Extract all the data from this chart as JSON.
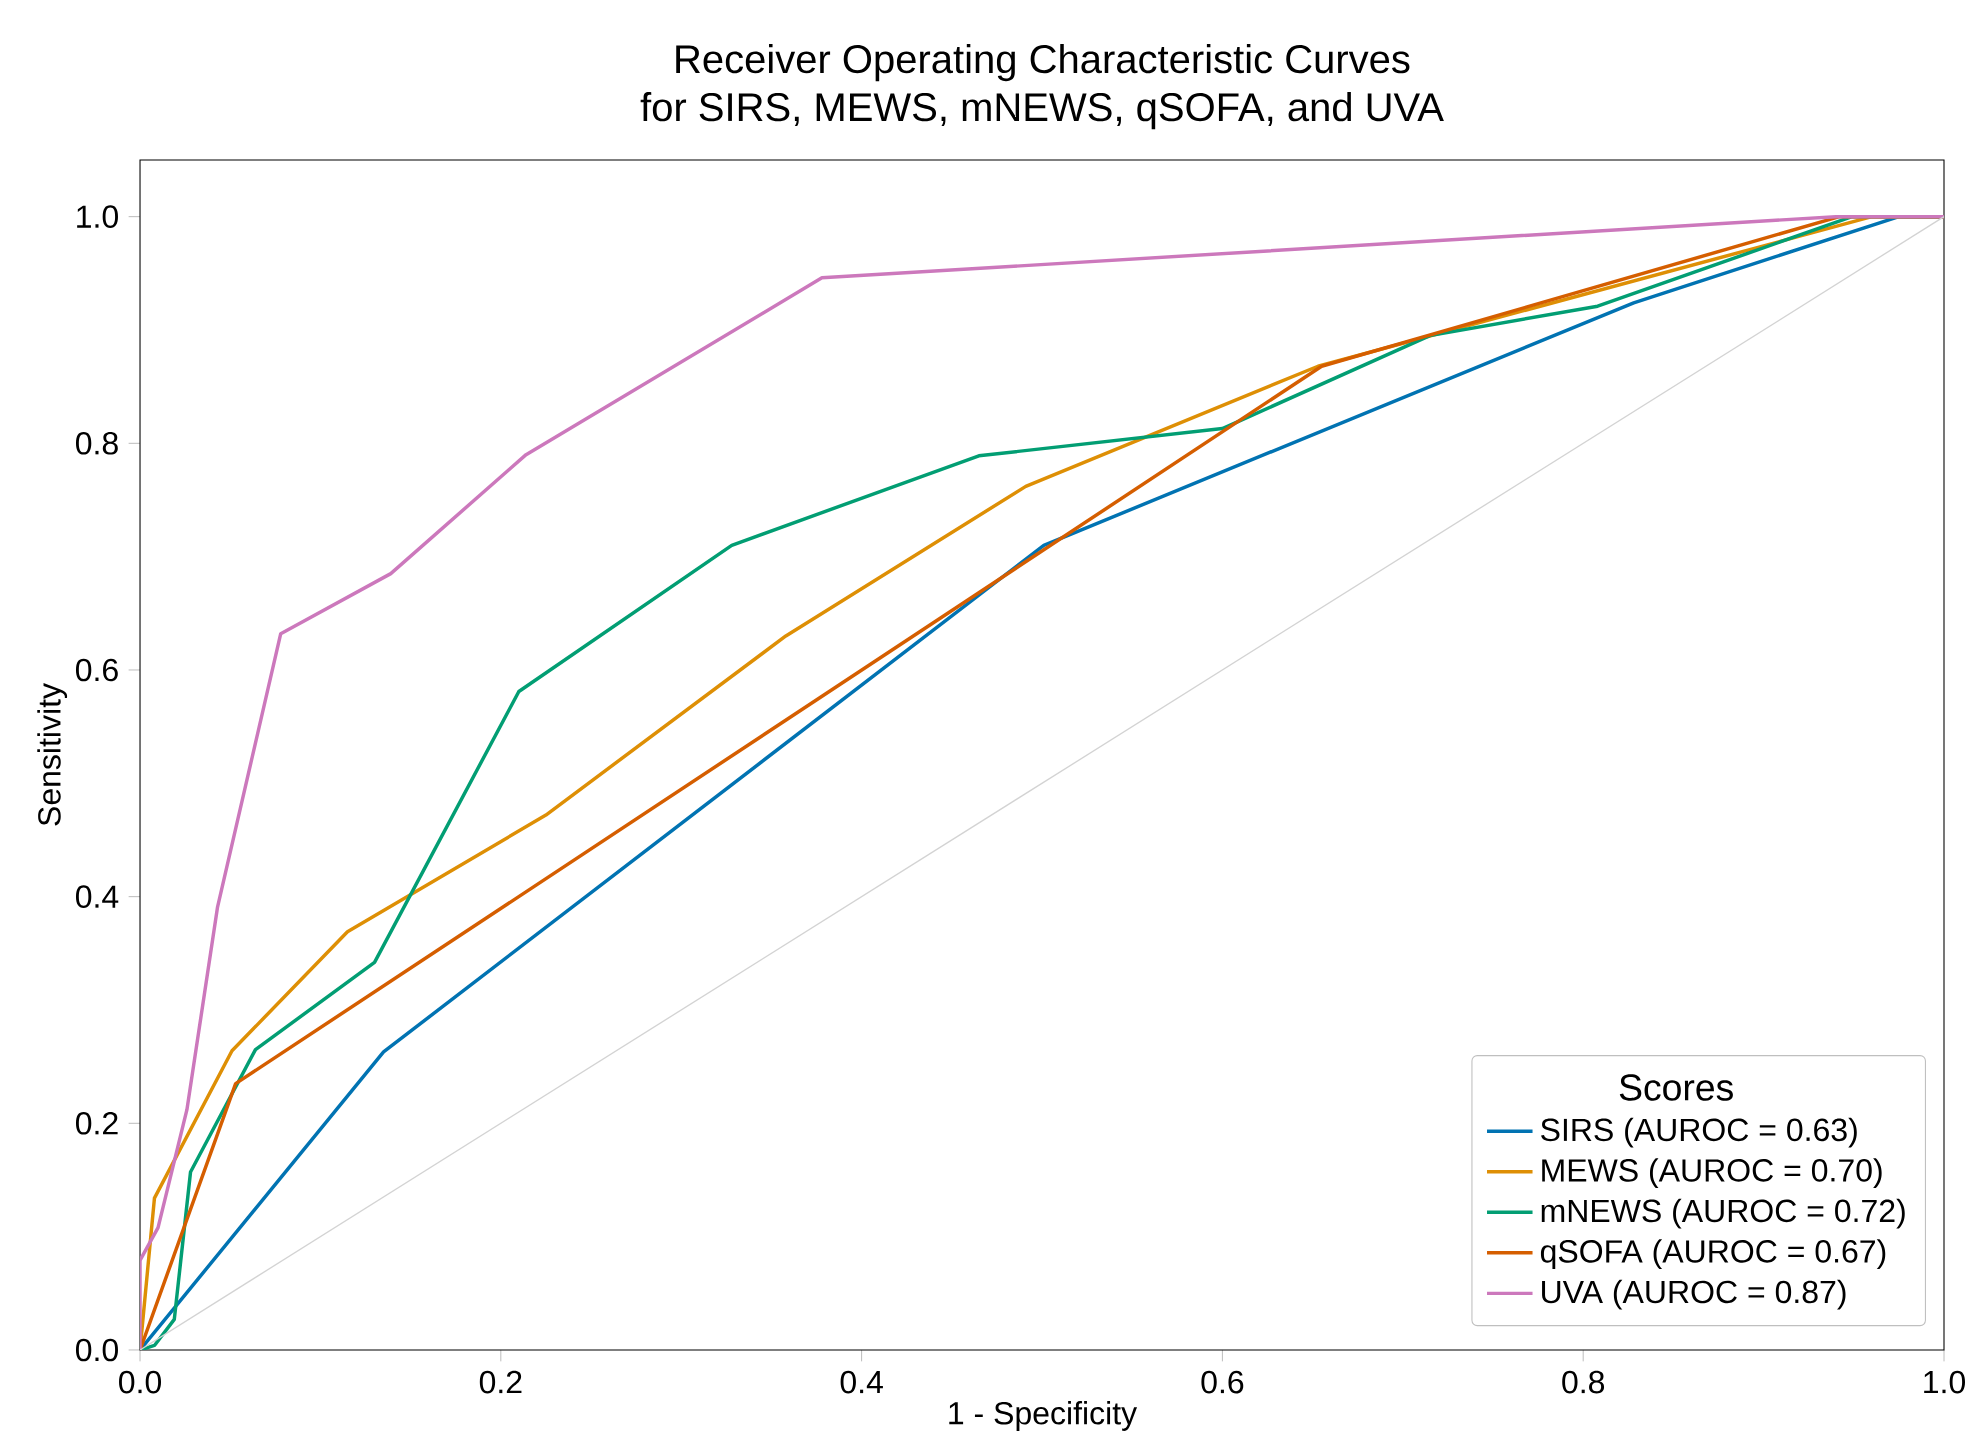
{
  "chart_data": {
    "type": "line",
    "title": "Receiver Operating Characteristic Curves",
    "subtitle": "for SIRS, MEWS, mNEWS, qSOFA, and UVA",
    "xlabel": "1 - Specificity",
    "ylabel": "Sensitivity",
    "legend_title": "Scores",
    "legend": "bottom right",
    "grid": false,
    "marker": "none",
    "line_style": "solid",
    "xlim": [
      0,
      1
    ],
    "ylim": [
      0,
      1.05
    ],
    "xticks": [
      {
        "value": 0,
        "label": "0.0"
      },
      0.2,
      0.4,
      0.6,
      0.8,
      {
        "value": 1,
        "label": "1.0"
      }
    ],
    "yticks": [
      {
        "value": 0,
        "label": "0.0"
      },
      0.2,
      0.4,
      0.6,
      0.8,
      {
        "value": 1,
        "label": "1.0"
      }
    ],
    "series": [
      {
        "name": "SIRS (AUROC = 0.63)",
        "color": "#0173b2",
        "x": [
          0,
          0.135,
          0.501,
          0.828,
          0.975,
          1
        ],
        "values": [
          0,
          0.263,
          0.71,
          0.924,
          1.0,
          1.0
        ]
      },
      {
        "name": "MEWS (AUROC = 0.70)",
        "color": "#de8f05",
        "x": [
          0,
          0.008,
          0.051,
          0.115,
          0.225,
          0.358,
          0.491,
          0.653,
          0.96,
          1
        ],
        "values": [
          0,
          0.134,
          0.264,
          0.369,
          0.472,
          0.63,
          0.762,
          0.868,
          1.0,
          1.0
        ]
      },
      {
        "name": "mNEWS (AUROC = 0.72)",
        "color": "#029e73",
        "x": [
          0,
          0.008,
          0.019,
          0.028,
          0.064,
          0.13,
          0.21,
          0.328,
          0.465,
          0.6,
          0.715,
          0.808,
          0.949,
          1
        ],
        "values": [
          0,
          0.004,
          0.027,
          0.157,
          0.265,
          0.342,
          0.581,
          0.71,
          0.789,
          0.813,
          0.895,
          0.921,
          1.0,
          1.0
        ]
      },
      {
        "name": "qSOFA (AUROC = 0.67)",
        "color": "#d55e00",
        "x": [
          0,
          0.053,
          0.655,
          0.942,
          1
        ],
        "values": [
          0,
          0.235,
          0.868,
          1.0,
          1.0
        ]
      },
      {
        "name": "UVA (AUROC = 0.87)",
        "color": "#cc78bc",
        "x": [
          0,
          0,
          0.01,
          0.026,
          0.043,
          0.078,
          0.139,
          0.214,
          0.378,
          0.94,
          1
        ],
        "values": [
          0,
          0.079,
          0.108,
          0.212,
          0.391,
          0.632,
          0.685,
          0.79,
          0.946,
          1.0,
          1.0
        ]
      },
      {
        "color": "#d3d3d3",
        "x": [
          0,
          1
        ],
        "values": [
          0,
          1
        ]
      }
    ]
  }
}
